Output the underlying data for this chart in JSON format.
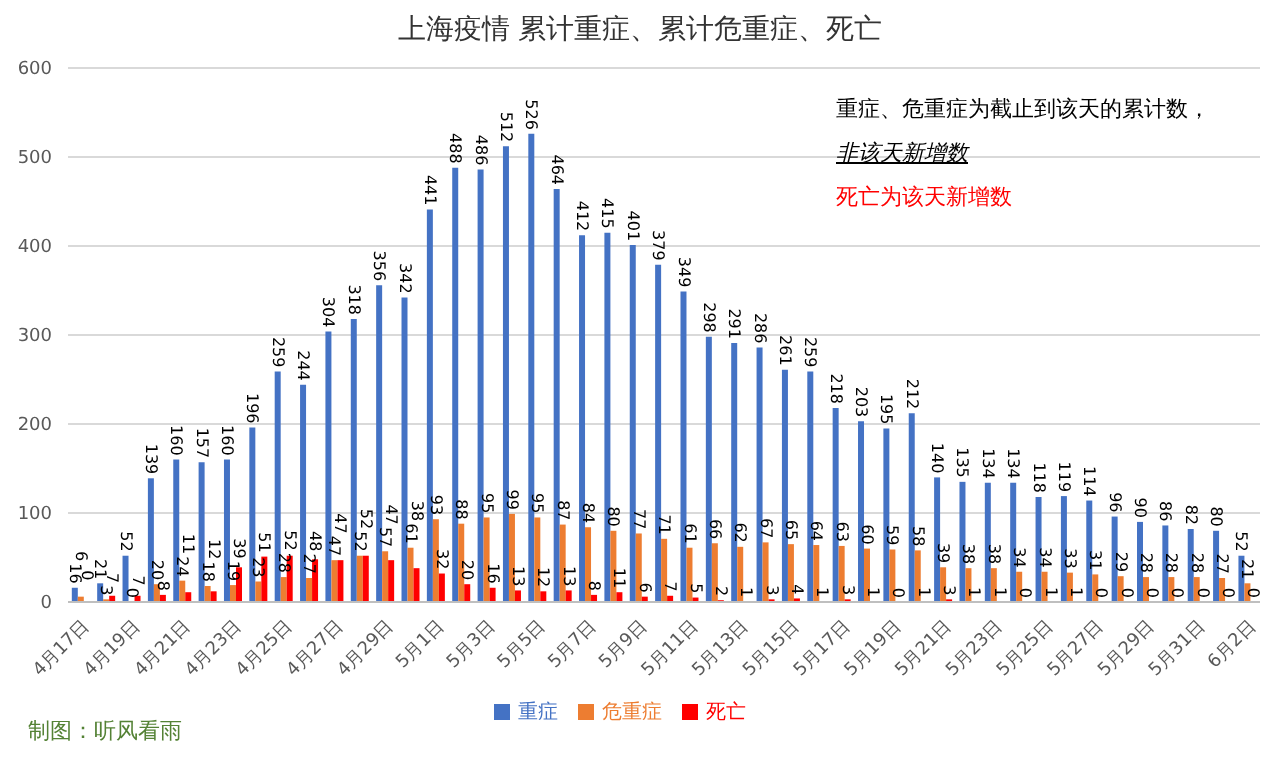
{
  "chart_data": {
    "type": "bar",
    "title": "上海疫情 累计重症、累计危重症、死亡",
    "categories": [
      "4月17日",
      null,
      "4月19日",
      null,
      "4月21日",
      null,
      "4月23日",
      null,
      "4月25日",
      null,
      "4月27日",
      null,
      "4月29日",
      null,
      "5月1日",
      null,
      "5月3日",
      null,
      "5月5日",
      null,
      "5月7日",
      null,
      "5月9日",
      null,
      "5月11日",
      null,
      "5月13日",
      null,
      "5月15日",
      null,
      "5月17日",
      null,
      "5月19日",
      null,
      "5月21日",
      null,
      "5月23日",
      null,
      "5月25日",
      null,
      "5月27日",
      null,
      "5月29日",
      null,
      "5月31日",
      null,
      "6月2日"
    ],
    "series": [
      {
        "name": "重症",
        "color": "#4472c4",
        "values": [
          16,
          21,
          52,
          139,
          160,
          157,
          160,
          196,
          259,
          244,
          304,
          318,
          356,
          342,
          441,
          488,
          486,
          512,
          526,
          464,
          412,
          415,
          401,
          379,
          349,
          298,
          291,
          286,
          261,
          259,
          218,
          203,
          195,
          212,
          140,
          135,
          134,
          134,
          118,
          119,
          114,
          96,
          90,
          86,
          82,
          80,
          52
        ]
      },
      {
        "name": "危重症",
        "color": "#ed7d31",
        "values": [
          6,
          3,
          0,
          20,
          24,
          18,
          19,
          23,
          28,
          27,
          47,
          52,
          57,
          61,
          93,
          88,
          95,
          99,
          95,
          87,
          84,
          80,
          77,
          71,
          61,
          66,
          62,
          67,
          65,
          64,
          63,
          60,
          59,
          58,
          39,
          38,
          38,
          34,
          34,
          33,
          31,
          29,
          28,
          28,
          28,
          27,
          21
        ]
      },
      {
        "name": "死亡",
        "color": "#ff0000",
        "values": [
          0,
          7,
          7,
          8,
          11,
          12,
          39,
          51,
          52,
          48,
          47,
          52,
          47,
          38,
          32,
          20,
          16,
          13,
          12,
          13,
          8,
          11,
          6,
          7,
          5,
          2,
          1,
          3,
          4,
          1,
          3,
          1,
          0,
          1,
          3,
          1,
          1,
          0,
          1,
          1,
          0,
          0,
          0,
          0,
          0,
          0,
          0
        ]
      }
    ],
    "ylim": [
      0,
      600
    ],
    "yticks": [
      0,
      100,
      200,
      300,
      400,
      500,
      600
    ],
    "grid": "y",
    "legend": "bottom",
    "data_labels": true,
    "annotations": [
      "重症、危重症为截止到该天的累计数，",
      "非该天新增数",
      "死亡为该天新增数",
      "制图：听风看雨"
    ]
  }
}
